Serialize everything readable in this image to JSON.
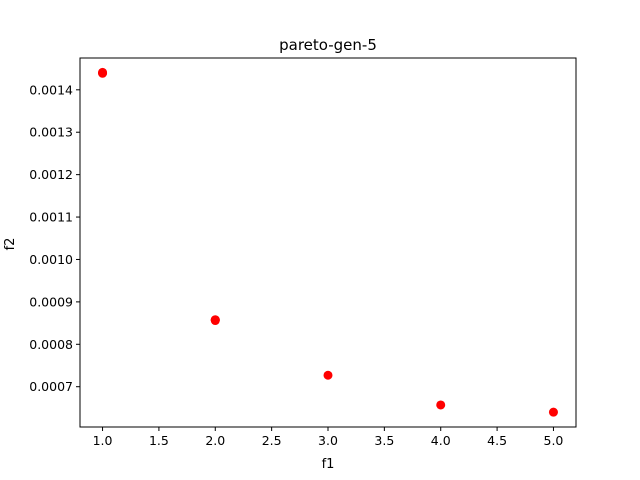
{
  "chart_data": {
    "type": "scatter",
    "title": "pareto-gen-5",
    "xlabel": "f1",
    "ylabel": "f2",
    "xlim": [
      0.8,
      5.2
    ],
    "ylim": [
      0.000605,
      0.001475
    ],
    "xticks": [
      1.0,
      1.5,
      2.0,
      2.5,
      3.0,
      3.5,
      4.0,
      4.5,
      5.0
    ],
    "xtick_labels": [
      "1.0",
      "1.5",
      "2.0",
      "2.5",
      "3.0",
      "3.5",
      "4.0",
      "4.5",
      "5.0"
    ],
    "yticks": [
      0.0007,
      0.0008,
      0.0009,
      0.001,
      0.0011,
      0.0012,
      0.0013,
      0.0014
    ],
    "ytick_labels": [
      "0.0007",
      "0.0008",
      "0.0009",
      "0.0010",
      "0.0011",
      "0.0012",
      "0.0013",
      "0.0014"
    ],
    "grid": false,
    "marker_color": "#ff0000",
    "points": [
      {
        "x": 1.0,
        "y": 0.00144
      },
      {
        "x": 1.0,
        "y": 0.001441
      },
      {
        "x": 1.0,
        "y": 0.001439
      },
      {
        "x": 2.0,
        "y": 0.000857
      },
      {
        "x": 2.0,
        "y": 0.000858
      },
      {
        "x": 2.0,
        "y": 0.000856
      },
      {
        "x": 3.0,
        "y": 0.000727
      },
      {
        "x": 4.0,
        "y": 0.000657
      },
      {
        "x": 5.0,
        "y": 0.00064
      }
    ]
  }
}
